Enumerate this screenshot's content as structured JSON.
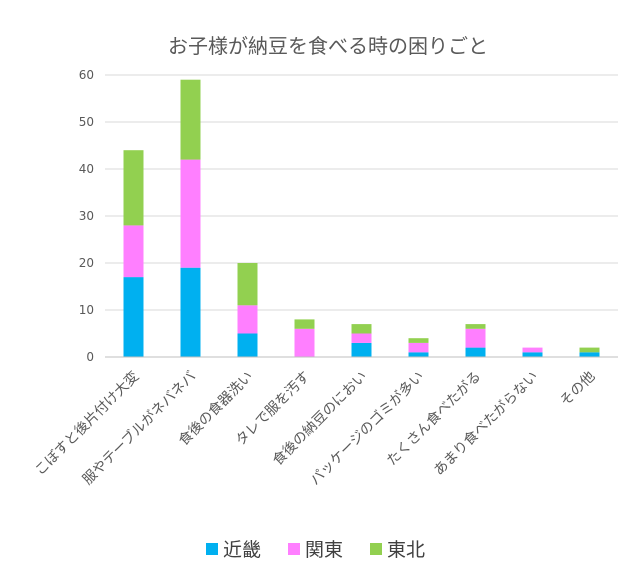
{
  "chart_data": {
    "type": "bar",
    "stacked": true,
    "title": "お子様が納豆を食べる時の困りごと",
    "categories": [
      "こぼすと後片付け大変",
      "服やテーブルがネバネバ",
      "食後の食器洗い",
      "タレで服を汚す",
      "食後の納豆のにおい",
      "パッケージのゴミが多い",
      "たくさん食べたがる",
      "あまり食べたがらない",
      "その他"
    ],
    "series": [
      {
        "name": "近畿",
        "color": "#00b0f0",
        "values": [
          17,
          19,
          5,
          0,
          3,
          1,
          2,
          1,
          1
        ]
      },
      {
        "name": "関東",
        "color": "#ff7fff",
        "values": [
          11,
          23,
          6,
          6,
          2,
          2,
          4,
          1,
          0
        ]
      },
      {
        "name": "東北",
        "color": "#92d050",
        "values": [
          16,
          17,
          9,
          2,
          2,
          1,
          1,
          0,
          1
        ]
      }
    ],
    "ylim": [
      0,
      60
    ],
    "yticks": [
      0,
      10,
      20,
      30,
      40,
      50,
      60
    ],
    "grid": true,
    "legend": "bottom"
  }
}
